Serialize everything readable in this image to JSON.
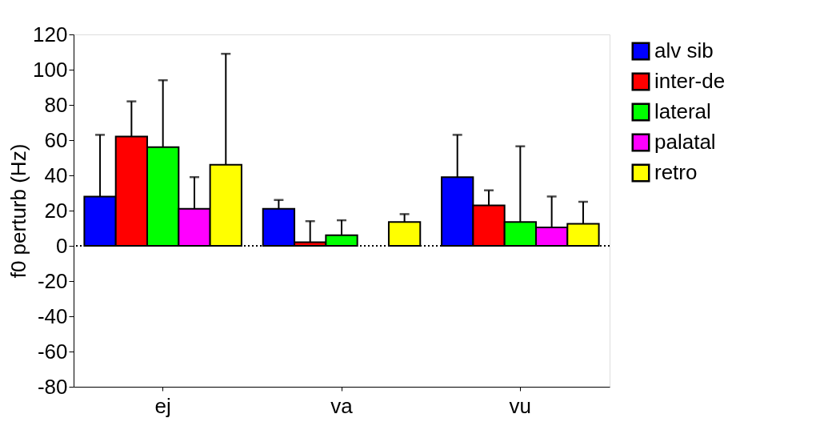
{
  "chart_data": {
    "type": "bar",
    "ylabel": "f0 perturb (Hz)",
    "categories": [
      "ej",
      "va",
      "vu"
    ],
    "series": [
      {
        "name": "alv sib",
        "color": "#0000ff",
        "values": [
          28,
          21,
          39
        ],
        "errors": [
          [
            28,
            63
          ],
          [
            21,
            26
          ],
          [
            39,
            63
          ]
        ]
      },
      {
        "name": "inter-de",
        "color": "#ff0000",
        "values": [
          62,
          2,
          23
        ],
        "errors": [
          [
            62,
            82
          ],
          [
            2,
            14
          ],
          [
            23,
            31.5
          ]
        ]
      },
      {
        "name": "lateral",
        "color": "#00ff00",
        "values": [
          56,
          6,
          13.5
        ],
        "errors": [
          [
            56,
            94
          ],
          [
            6,
            14.5
          ],
          [
            13.5,
            56.5
          ]
        ]
      },
      {
        "name": "palatal",
        "color": "#ff00ff",
        "values": [
          21,
          null,
          10.5
        ],
        "errors": [
          [
            21,
            39
          ],
          null,
          [
            10.5,
            28
          ]
        ]
      },
      {
        "name": "retro",
        "color": "#ffff00",
        "values": [
          46,
          13.5,
          12.5
        ],
        "errors": [
          [
            46,
            109
          ],
          [
            13.5,
            18
          ],
          [
            12.5,
            25
          ]
        ]
      }
    ],
    "ylim": [
      -80,
      120
    ],
    "yticks": [
      -80,
      -60,
      -40,
      -20,
      0,
      20,
      40,
      60,
      80,
      100,
      120
    ],
    "ref_lines": [
      {
        "axis": "y",
        "value": 0,
        "line_style": "dotted"
      }
    ],
    "legend": "right",
    "grid": false
  }
}
